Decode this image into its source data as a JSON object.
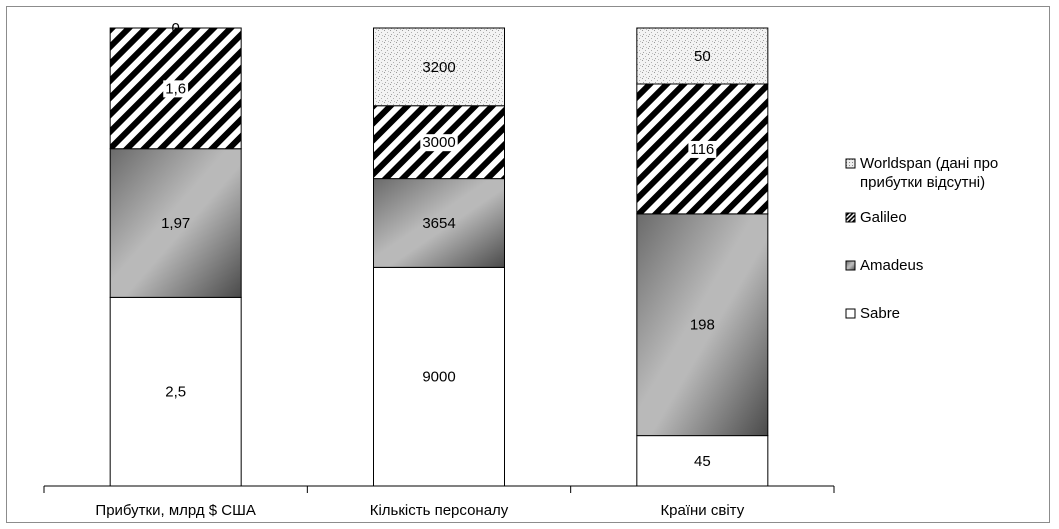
{
  "chart_data": {
    "type": "bar",
    "stacked": "percent",
    "title": "",
    "xlabel": "",
    "ylabel": "",
    "categories": [
      "Прибутки, млрд $ США",
      "Кількість персоналу",
      "Країни світу"
    ],
    "series": [
      {
        "name": "Sabre",
        "values": [
          2.5,
          9000,
          45
        ],
        "labels": [
          "2,5",
          "9000",
          "45"
        ],
        "pattern": "white"
      },
      {
        "name": "Amadeus",
        "values": [
          1.97,
          3654,
          198
        ],
        "labels": [
          "1,97",
          "3654",
          "198"
        ],
        "pattern": "gray-gradient"
      },
      {
        "name": "Galileo",
        "values": [
          1.6,
          3000,
          116
        ],
        "labels": [
          "1,6",
          "3000",
          "116"
        ],
        "pattern": "diagonal-stripes"
      },
      {
        "name": "Worldspan (дані про прибутки відсутні)",
        "values": [
          0,
          3200,
          50
        ],
        "labels": [
          "0",
          "3200",
          "50"
        ],
        "pattern": "dotted"
      }
    ],
    "legend_lines": [
      [
        "Worldspan (дані про",
        "прибутки відсутні)"
      ],
      [
        "Galileo"
      ],
      [
        "Amadeus"
      ],
      [
        "Sabre"
      ]
    ],
    "legend_position": "right",
    "grid": false
  }
}
